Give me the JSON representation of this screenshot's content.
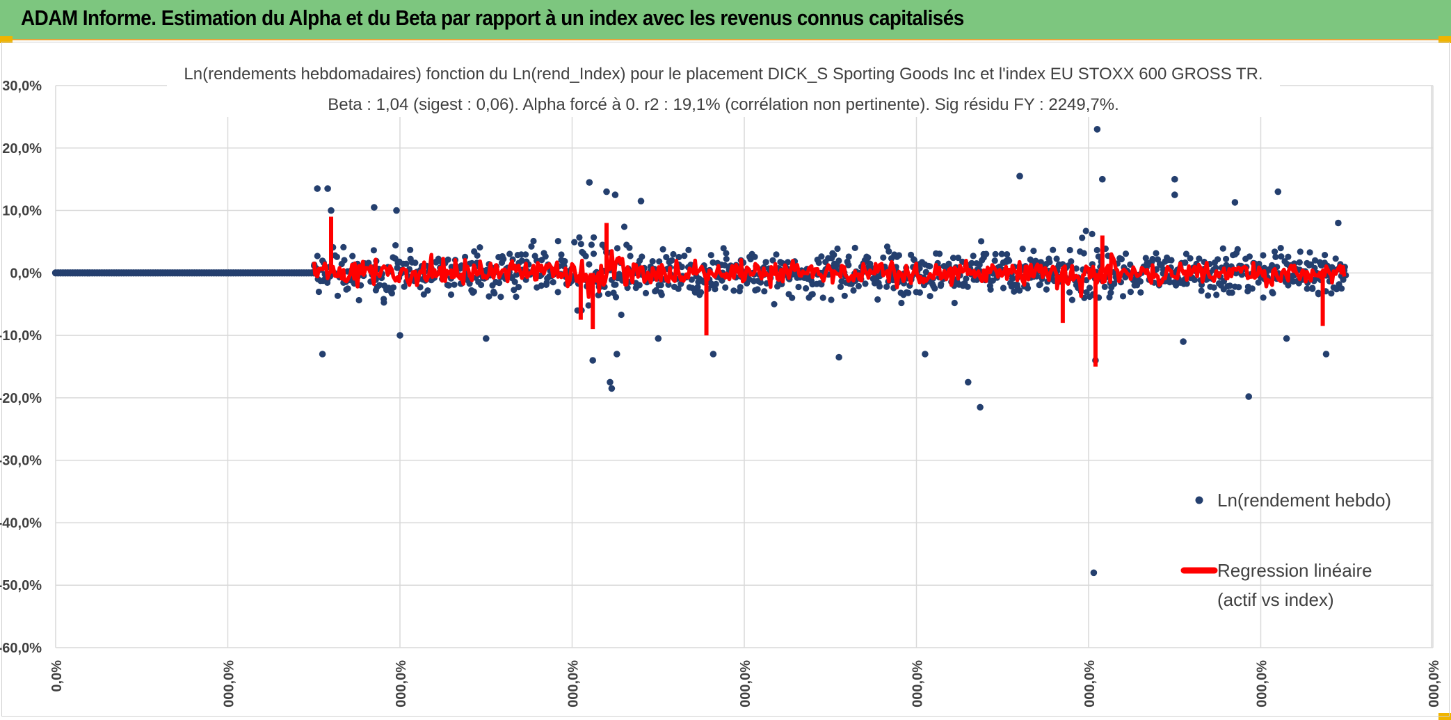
{
  "header": {
    "title": "ADAM Informe. Estimation du Alpha et du Beta par rapport à un index avec les revenus connus capitalisés",
    "bg_color": "#7dc67f"
  },
  "chart_data": {
    "type": "scatter",
    "title": "Ln(rendements hebdomadaires) fonction du Ln(rend_Index) pour le placement DICK_S Sporting Goods Inc et l'index EU STOXX 600 GROSS TR.",
    "subtitle": "Beta : 1,04 (sigest : 0,06). Alpha forcé à 0. r2 : 19,1% (corrélation non pertinente). Sig résidu FY : 2249,7%.",
    "ylim": [
      -0.6,
      0.3
    ],
    "yticks": [
      "30,0%",
      "20,0%",
      "10,0%",
      "0,0%",
      "-10,0%",
      "-20,0%",
      "-30,0%",
      "-40,0%",
      "-50,0%",
      "-60,0%"
    ],
    "xticks": [
      "0,0%",
      "000,0%",
      "000,0%",
      "000,0%",
      "000,0%",
      "000,0%",
      "000,0%",
      "000,0%",
      "000,0%"
    ],
    "grid": true,
    "legend_position": "bottom-right",
    "series": [
      {
        "name": "Ln(rendement hebdo)",
        "color": "#243f6e",
        "marker": "dot"
      },
      {
        "name": "Regression linéaire (actif vs index)",
        "color": "#ff0000",
        "marker": "line"
      }
    ],
    "flat_segment": {
      "x_start": 0.0,
      "x_end": 1.5,
      "y": 0.0
    },
    "active_range": {
      "x_start": 1.5,
      "x_end": 7.5
    },
    "outliers": [
      {
        "x": 1.52,
        "y": 0.135
      },
      {
        "x": 1.58,
        "y": 0.135
      },
      {
        "x": 1.55,
        "y": -0.13
      },
      {
        "x": 1.6,
        "y": 0.1
      },
      {
        "x": 1.85,
        "y": 0.105
      },
      {
        "x": 1.98,
        "y": 0.1
      },
      {
        "x": 2.0,
        "y": -0.1
      },
      {
        "x": 2.5,
        "y": -0.105
      },
      {
        "x": 3.1,
        "y": 0.145
      },
      {
        "x": 3.12,
        "y": -0.14
      },
      {
        "x": 3.2,
        "y": 0.13
      },
      {
        "x": 3.25,
        "y": 0.125
      },
      {
        "x": 3.22,
        "y": -0.175
      },
      {
        "x": 3.23,
        "y": -0.185
      },
      {
        "x": 3.26,
        "y": -0.13
      },
      {
        "x": 3.4,
        "y": 0.115
      },
      {
        "x": 3.5,
        "y": -0.105
      },
      {
        "x": 3.82,
        "y": -0.13
      },
      {
        "x": 4.55,
        "y": -0.135
      },
      {
        "x": 5.05,
        "y": -0.13
      },
      {
        "x": 5.3,
        "y": -0.175
      },
      {
        "x": 5.37,
        "y": -0.215
      },
      {
        "x": 5.6,
        "y": 0.155
      },
      {
        "x": 6.05,
        "y": 0.23
      },
      {
        "x": 6.08,
        "y": 0.15
      },
      {
        "x": 6.04,
        "y": -0.14
      },
      {
        "x": 6.03,
        "y": -0.48
      },
      {
        "x": 6.5,
        "y": 0.15
      },
      {
        "x": 6.5,
        "y": 0.125
      },
      {
        "x": 6.55,
        "y": -0.11
      },
      {
        "x": 6.85,
        "y": 0.113
      },
      {
        "x": 6.93,
        "y": -0.198
      },
      {
        "x": 7.1,
        "y": 0.13
      },
      {
        "x": 7.15,
        "y": -0.105
      },
      {
        "x": 7.38,
        "y": -0.13
      },
      {
        "x": 7.45,
        "y": 0.08
      }
    ]
  }
}
